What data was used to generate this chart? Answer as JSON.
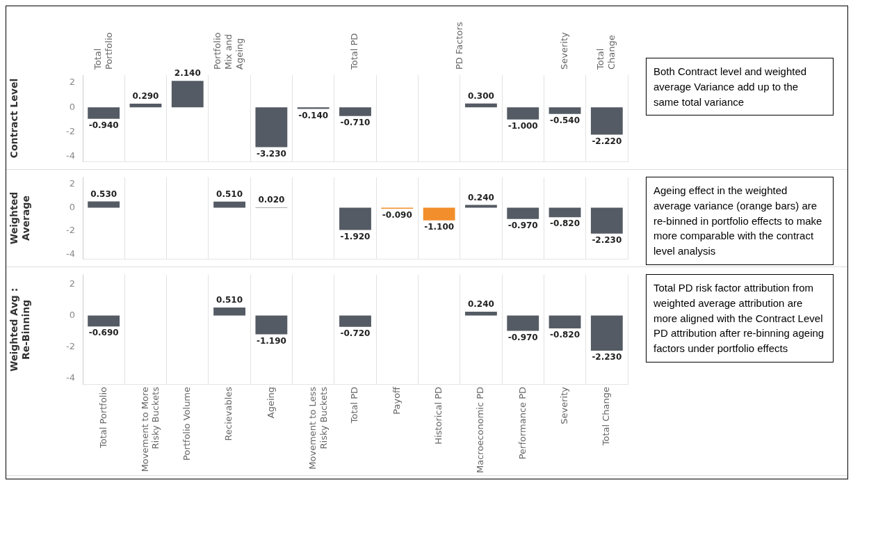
{
  "chart_data": [
    {
      "type": "bar",
      "ylabel": "Contract Level",
      "values": [
        -0.94,
        0.29,
        2.14,
        null,
        -3.23,
        -0.14,
        -0.71,
        null,
        null,
        0.3,
        -1.0,
        -0.54,
        -2.22
      ],
      "value_labels": [
        "-0.940",
        "0.290",
        "2.140",
        null,
        "-3.230",
        "-0.140",
        "-0.710",
        null,
        null,
        "0.300",
        "-1.000",
        "-0.540",
        "-2.220"
      ],
      "colors": [
        "#545b64",
        "#545b64",
        "#545b64",
        "#545b64",
        "#545b64",
        "#545b64",
        "#545b64",
        "#545b64",
        "#545b64",
        "#545b64",
        "#545b64",
        "#545b64",
        "#545b64"
      ],
      "ylim": [
        -4.4,
        2.6
      ],
      "yticks": [
        -4,
        -2,
        0,
        2
      ],
      "tick_labels": "y",
      "annotations": [
        "Total Portfolio",
        "Portfolio Mix and Ageing",
        "Total PD",
        "PD Factors",
        "Severity",
        "Total Change",
        "Both Contract level and weighted average Variance add up to the same total variance"
      ]
    },
    {
      "type": "bar",
      "ylabel": "Weighted Average",
      "values": [
        0.53,
        null,
        null,
        0.51,
        0.02,
        null,
        -1.92,
        -0.09,
        -1.1,
        0.24,
        -0.97,
        -0.82,
        -2.23
      ],
      "value_labels": [
        "0.530",
        null,
        null,
        "0.510",
        "0.020",
        null,
        "-1.920",
        "-0.090",
        "-1.100",
        "0.240",
        "-0.970",
        "-0.820",
        "-2.230"
      ],
      "colors": [
        "#545b64",
        "#545b64",
        "#545b64",
        "#545b64",
        "#545b64",
        "#545b64",
        "#545b64",
        "#f28e2b",
        "#f28e2b",
        "#545b64",
        "#545b64",
        "#545b64",
        "#545b64"
      ],
      "ylim": [
        -4.4,
        2.6
      ],
      "yticks": [
        -4,
        -2,
        0,
        2
      ],
      "tick_labels": "y",
      "annotations": [
        "Ageing effect in the weighted average variance (orange bars) are re-binned in portfolio effects to make more comparable with the contract level analysis"
      ]
    },
    {
      "type": "bar",
      "ylabel": "Weighted Avg : Re-Binning",
      "categories": [
        "Total Portfolio",
        "Movement to More Risky Buckets",
        "Portfolio Volume",
        "Recievables",
        "Ageing",
        "Movement to Less Risky Buckets",
        "Total PD",
        "Payoff",
        "Historical PD",
        "Macroeconomic PD",
        "Performance PD",
        "Severity",
        "Total Change"
      ],
      "values": [
        -0.69,
        null,
        null,
        0.51,
        -1.19,
        null,
        -0.72,
        null,
        null,
        0.24,
        -0.97,
        -0.82,
        -2.23
      ],
      "value_labels": [
        "-0.690",
        null,
        null,
        "0.510",
        "-1.190",
        null,
        "-0.720",
        null,
        null,
        "0.240",
        "-0.970",
        "-0.820",
        "-2.230"
      ],
      "colors": [
        "#545b64",
        "#545b64",
        "#545b64",
        "#545b64",
        "#545b64",
        "#545b64",
        "#545b64",
        "#545b64",
        "#545b64",
        "#545b64",
        "#545b64",
        "#545b64",
        "#545b64"
      ],
      "ylim": [
        -4.4,
        2.6
      ],
      "yticks": [
        -4,
        -2,
        0,
        2
      ],
      "annotations": [
        "Total PD risk factor attribution from weighted average attribution are more aligned with the Contract Level PD attribution after re-binning ageing factors under portfolio effects"
      ]
    }
  ]
}
